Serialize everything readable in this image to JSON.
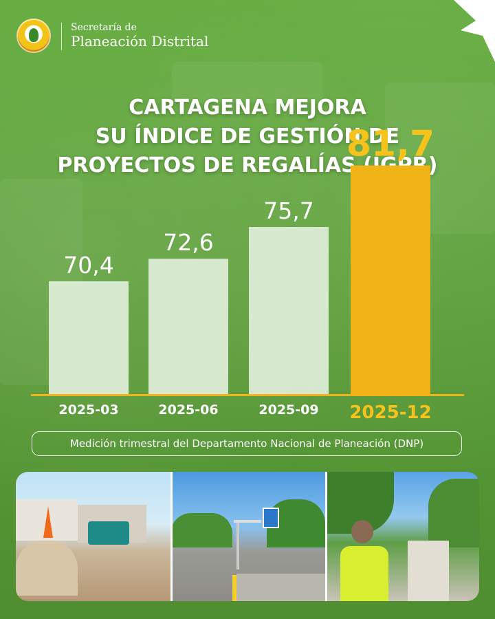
{
  "header": {
    "org_line1": "Secretaría de",
    "org_line2": "Planeación Distrital",
    "logo_icon": "city-seal-icon"
  },
  "title_lines": [
    "CARTAGENA MEJORA",
    "SU ÍNDICE DE GESTIÓN DE",
    "PROYECTOS DE REGALÍAS (IGPR)"
  ],
  "footnote": "Medición trimestral del Departamento Nacional de Planeación (DNP)",
  "colors": {
    "background": "#5fa33d",
    "bar": "#dfeed8",
    "highlight_bar": "#f0b418",
    "highlight_text": "#f6c21c",
    "text": "#ffffff"
  },
  "photos": [
    {
      "icon": "construction-site-photo"
    },
    {
      "icon": "bus-stop-street-photo"
    },
    {
      "icon": "inspector-photo"
    }
  ],
  "chart_data": {
    "type": "bar",
    "categories": [
      "2025-03",
      "2025-06",
      "2025-09",
      "2025-12"
    ],
    "values": [
      70.4,
      72.6,
      75.7,
      81.7
    ],
    "value_labels": [
      "70,4",
      "72,6",
      "75,7",
      "81,7"
    ],
    "highlight_index": 3,
    "title": "CARTAGENA MEJORA SU ÍNDICE DE GESTIÓN DE PROYECTOS DE REGALÍAS (IGPR)",
    "xlabel": "",
    "ylabel": "",
    "grid": false,
    "legend": "none"
  }
}
